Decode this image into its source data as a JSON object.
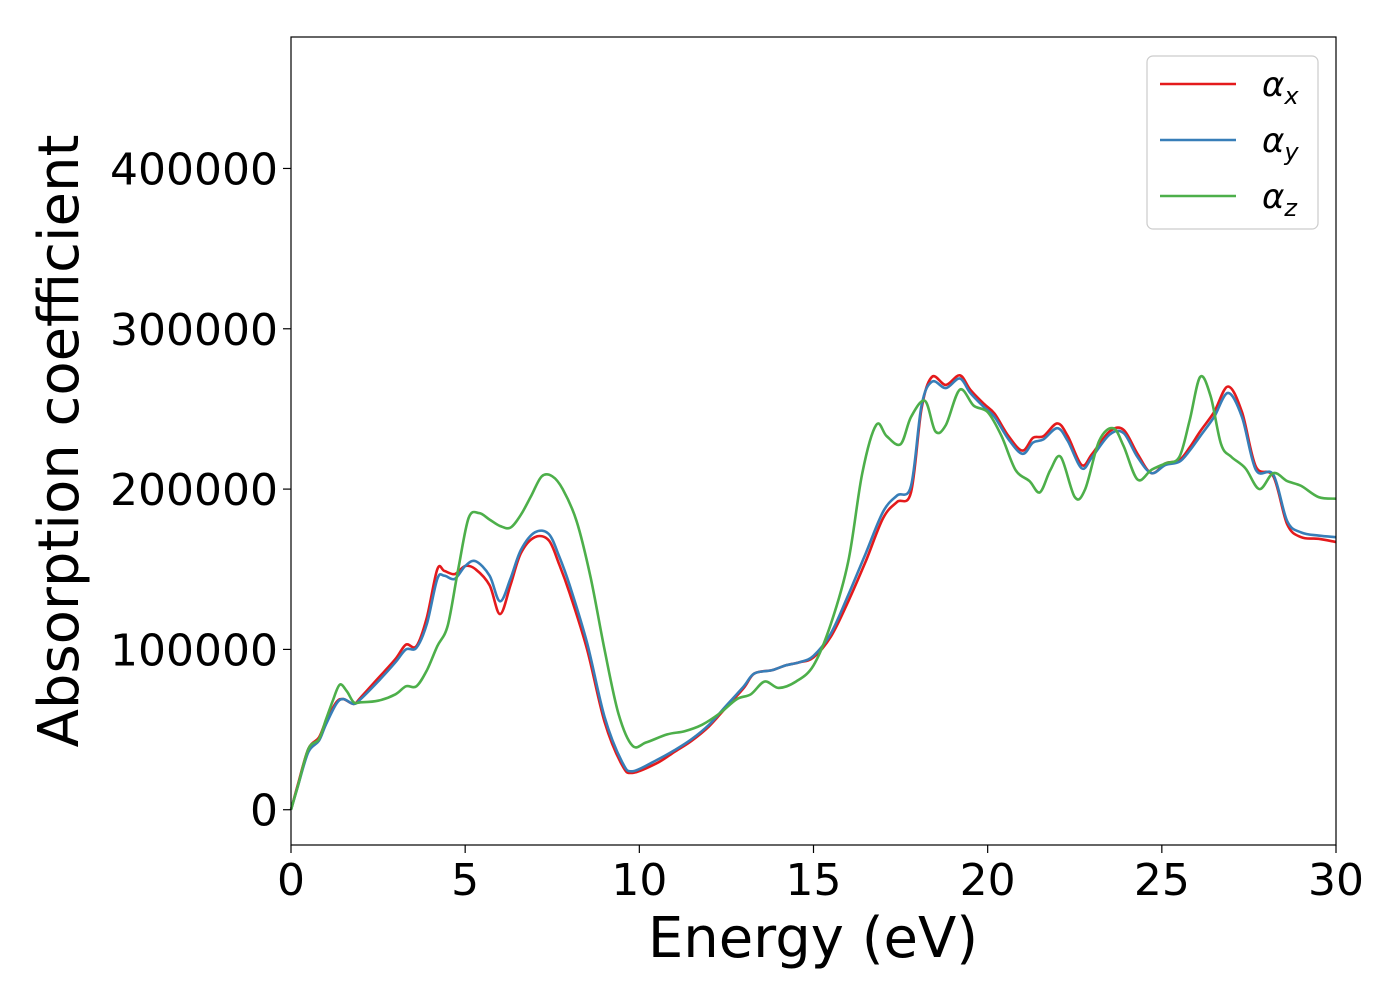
{
  "chart_data": {
    "type": "line",
    "title": "",
    "xlabel": "Energy (eV)",
    "ylabel": "Absorption coefficient",
    "xlim": [
      0,
      30
    ],
    "ylim": [
      -22000,
      482000
    ],
    "xticks": [
      0,
      5,
      10,
      15,
      20,
      25,
      30
    ],
    "yticks": [
      0,
      100000,
      200000,
      300000,
      400000
    ],
    "grid": false,
    "legend_position": "top-right",
    "series": [
      {
        "name": "α_x",
        "label_main": "α",
        "label_sub": "x",
        "color": "#e41a1c",
        "x": [
          0,
          0.2,
          0.5,
          0.8,
          1.0,
          1.3,
          1.5,
          1.8,
          2.0,
          2.5,
          3.0,
          3.3,
          3.6,
          3.9,
          4.2,
          4.4,
          4.7,
          5.0,
          5.3,
          5.7,
          6.0,
          6.3,
          6.6,
          7.0,
          7.4,
          7.7,
          8.0,
          8.5,
          9.0,
          9.5,
          9.8,
          10.5,
          11.0,
          11.5,
          12.0,
          12.5,
          13.0,
          13.3,
          13.8,
          14.2,
          14.6,
          15.0,
          15.5,
          16.0,
          16.5,
          17.0,
          17.4,
          17.8,
          18.1,
          18.4,
          18.8,
          19.2,
          19.5,
          19.9,
          20.2,
          20.6,
          21.0,
          21.3,
          21.6,
          22.0,
          22.3,
          22.7,
          23.0,
          23.5,
          23.9,
          24.3,
          24.7,
          25.1,
          25.5,
          25.8,
          26.1,
          26.5,
          26.9,
          27.3,
          27.7,
          28.2,
          28.6,
          29.0,
          29.5,
          30.0
        ],
        "y": [
          0,
          16000,
          38000,
          45000,
          55000,
          67000,
          69000,
          66000,
          70000,
          82000,
          94000,
          103000,
          102000,
          120000,
          150000,
          149000,
          147000,
          152000,
          150000,
          140000,
          122000,
          140000,
          160000,
          170000,
          168000,
          153000,
          135000,
          100000,
          55000,
          28000,
          23000,
          29000,
          36000,
          43000,
          52000,
          64000,
          76000,
          85000,
          87000,
          90000,
          92000,
          95000,
          108000,
          130000,
          155000,
          182000,
          192000,
          198000,
          250000,
          270000,
          265000,
          271000,
          262000,
          253000,
          247000,
          233000,
          224000,
          232000,
          233000,
          241000,
          233000,
          215000,
          222000,
          236000,
          237000,
          222000,
          210000,
          216000,
          218000,
          226000,
          236000,
          248000,
          264000,
          248000,
          214000,
          208000,
          178000,
          170000,
          169000,
          167000
        ]
      },
      {
        "name": "α_y",
        "label_main": "α",
        "label_sub": "y",
        "color": "#377eb8",
        "x": [
          0,
          0.2,
          0.5,
          0.8,
          1.0,
          1.3,
          1.5,
          1.8,
          2.0,
          2.5,
          3.0,
          3.3,
          3.6,
          3.9,
          4.2,
          4.4,
          4.7,
          5.0,
          5.3,
          5.7,
          6.0,
          6.3,
          6.6,
          7.0,
          7.4,
          7.7,
          8.0,
          8.5,
          9.0,
          9.5,
          9.8,
          10.5,
          11.0,
          11.5,
          12.0,
          12.5,
          13.0,
          13.3,
          13.8,
          14.2,
          14.6,
          15.0,
          15.5,
          16.0,
          16.5,
          17.0,
          17.4,
          17.8,
          18.1,
          18.4,
          18.8,
          19.2,
          19.5,
          19.9,
          20.2,
          20.6,
          21.0,
          21.3,
          21.6,
          22.0,
          22.3,
          22.7,
          23.0,
          23.5,
          23.9,
          24.3,
          24.7,
          25.1,
          25.5,
          25.8,
          26.1,
          26.5,
          26.9,
          27.3,
          27.7,
          28.2,
          28.6,
          29.0,
          29.5,
          30.0
        ],
        "y": [
          0,
          15000,
          36000,
          43000,
          53000,
          66000,
          69000,
          66000,
          69000,
          80000,
          92000,
          100000,
          101000,
          116000,
          144000,
          146000,
          144000,
          152000,
          155000,
          146000,
          130000,
          144000,
          162000,
          173000,
          172000,
          158000,
          140000,
          104000,
          58000,
          30000,
          24000,
          31000,
          37000,
          44000,
          53000,
          65000,
          77000,
          85000,
          87000,
          90000,
          92000,
          96000,
          110000,
          134000,
          160000,
          186000,
          196000,
          202000,
          252000,
          267000,
          263000,
          269000,
          260000,
          251000,
          245000,
          231000,
          222000,
          229000,
          231000,
          238000,
          230000,
          213000,
          220000,
          234000,
          235000,
          220000,
          210000,
          215000,
          217000,
          224000,
          233000,
          245000,
          260000,
          245000,
          212000,
          209000,
          180000,
          173000,
          171000,
          170000
        ]
      },
      {
        "name": "α_z",
        "label_main": "α",
        "label_sub": "z",
        "color": "#4daf4a",
        "x": [
          0,
          0.2,
          0.5,
          0.8,
          1.0,
          1.2,
          1.4,
          1.6,
          1.8,
          2.0,
          2.5,
          3.0,
          3.3,
          3.6,
          3.9,
          4.2,
          4.5,
          4.8,
          5.1,
          5.4,
          5.7,
          6.0,
          6.3,
          6.6,
          6.9,
          7.2,
          7.5,
          7.8,
          8.2,
          8.6,
          9.0,
          9.4,
          9.8,
          10.2,
          10.8,
          11.3,
          11.8,
          12.3,
          12.8,
          13.2,
          13.6,
          14.0,
          14.5,
          15.0,
          15.5,
          16.0,
          16.4,
          16.8,
          17.1,
          17.5,
          17.8,
          18.2,
          18.5,
          18.8,
          19.2,
          19.6,
          20.0,
          20.4,
          20.8,
          21.2,
          21.5,
          21.8,
          22.1,
          22.5,
          22.8,
          23.2,
          23.6,
          23.9,
          24.3,
          24.7,
          25.1,
          25.5,
          25.8,
          26.1,
          26.4,
          26.7,
          27.0,
          27.4,
          27.8,
          28.2,
          28.6,
          29.0,
          29.5,
          30.0
        ],
        "y": [
          0,
          15000,
          38000,
          44000,
          56000,
          68000,
          78000,
          74000,
          67000,
          67000,
          68000,
          72000,
          77000,
          77000,
          87000,
          102000,
          115000,
          150000,
          182000,
          185000,
          181000,
          177000,
          176000,
          184000,
          196000,
          208000,
          208000,
          200000,
          180000,
          145000,
          100000,
          60000,
          40000,
          42000,
          47000,
          49000,
          53000,
          60000,
          69000,
          72000,
          80000,
          76000,
          80000,
          90000,
          116000,
          155000,
          210000,
          240000,
          233000,
          228000,
          245000,
          255000,
          236000,
          240000,
          262000,
          252000,
          248000,
          233000,
          212000,
          205000,
          198000,
          212000,
          220000,
          195000,
          200000,
          230000,
          238000,
          227000,
          206000,
          212000,
          216000,
          220000,
          243000,
          270000,
          258000,
          228000,
          220000,
          213000,
          200000,
          210000,
          205000,
          202000,
          195000,
          194000
        ]
      }
    ]
  }
}
